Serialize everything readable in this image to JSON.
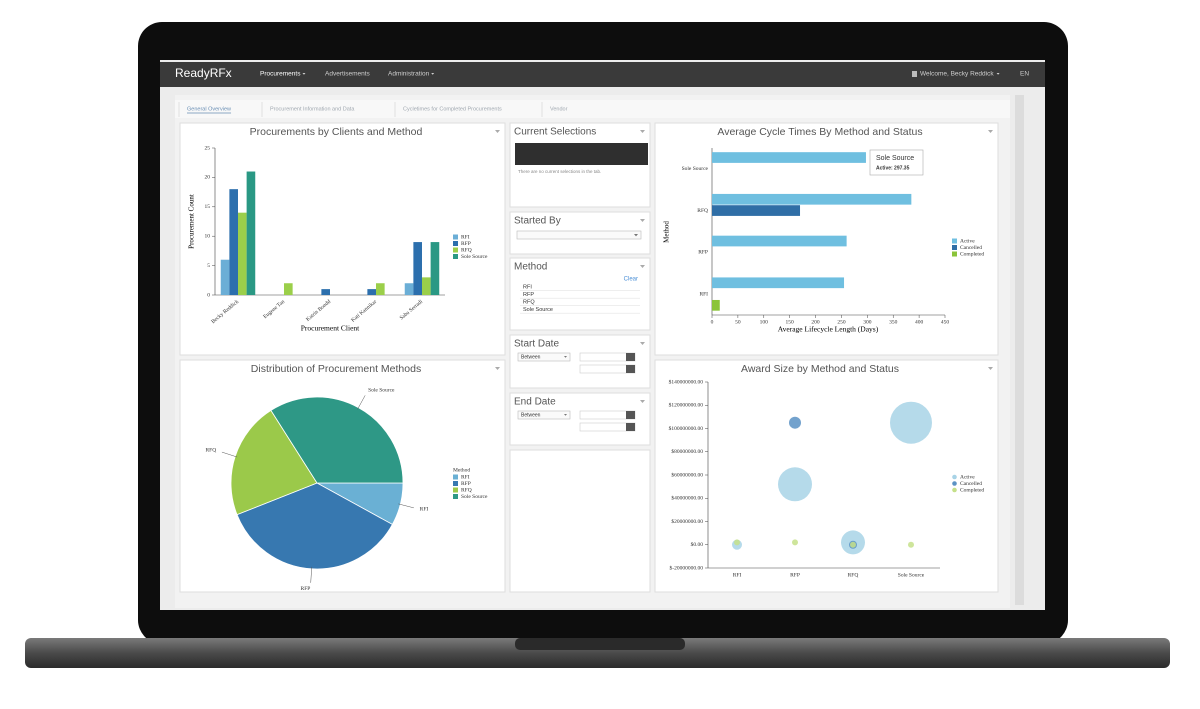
{
  "nav": {
    "brand": "ReadyRFx",
    "menu": [
      "Procurements",
      "Advertisements",
      "Administration"
    ],
    "user": "Welcome, Becky Reddick",
    "language": "EN"
  },
  "tabs": [
    "General Overview",
    "Procurement Information and Data",
    "Cycletimes for Completed Procurements",
    "Vendor"
  ],
  "filters": {
    "current_selections": {
      "title": "Current Selections",
      "message": "There are no current selections in the tab."
    },
    "started_by": {
      "title": "Started By"
    },
    "method": {
      "title": "Method",
      "clear": "Clear",
      "options": [
        "RFI",
        "RFP",
        "RFQ",
        "Sole Source"
      ]
    },
    "start_date": {
      "title": "Start Date",
      "operator": "Between"
    },
    "end_date": {
      "title": "End Date",
      "operator": "Between"
    }
  },
  "chart_data": [
    {
      "type": "bar",
      "title": "Procurements by Clients and Method",
      "x_label": "Procurement Client",
      "y_label": "Procurement Count",
      "categories": [
        "Becky Reddick",
        "Eugene Tan",
        "Katrin Bondd",
        "Kati Kannikar",
        "Saba Serradi"
      ],
      "series": [
        {
          "name": "RFI",
          "color": "#6baed6",
          "values": [
            6,
            0,
            0,
            0,
            2
          ]
        },
        {
          "name": "RFP",
          "color": "#2c6fad",
          "values": [
            18,
            0,
            1,
            1,
            9
          ]
        },
        {
          "name": "RFQ",
          "color": "#9bcf4a",
          "values": [
            14,
            2,
            0,
            2,
            3
          ]
        },
        {
          "name": "Sole Source",
          "color": "#2a9884",
          "values": [
            21,
            0,
            0,
            0,
            9
          ]
        }
      ],
      "ylim": [
        0,
        25
      ],
      "yticks": [
        0,
        5,
        10,
        15,
        20,
        25
      ],
      "legend": "right"
    },
    {
      "type": "hbar",
      "title": "Average Cycle Times By Method and Status",
      "x_label": "Average Lifecycle Length (Days)",
      "y_label": "Method",
      "categories": [
        "Sole Source",
        "RFQ",
        "RFP",
        "RFI"
      ],
      "series": [
        {
          "name": "Active",
          "color": "#6fbfe0",
          "values": [
            297.35,
            385,
            260,
            255
          ]
        },
        {
          "name": "Cancelled",
          "color": "#2f6ea6",
          "values": [
            null,
            170,
            null,
            null
          ]
        },
        {
          "name": "Completed",
          "color": "#8bc43a",
          "values": [
            null,
            null,
            null,
            15
          ]
        }
      ],
      "xlim": [
        0,
        450
      ],
      "xticks": [
        0,
        50,
        100,
        150,
        200,
        250,
        300,
        350,
        400,
        450
      ],
      "tooltip": {
        "title": "Sole Source",
        "text": "Active: 297.35"
      },
      "legend": "right"
    },
    {
      "type": "pie",
      "title": "Distribution of Procurement Methods",
      "legend_title": "Method",
      "categories": [
        "RFI",
        "RFP",
        "RFQ",
        "Sole Source"
      ],
      "values": [
        8,
        36,
        22,
        34
      ],
      "colors": [
        "#6ab0d4",
        "#3778b0",
        "#9bc94a",
        "#2e9886"
      ],
      "legend": "right"
    },
    {
      "type": "bubble",
      "title": "Award Size by Method and Status",
      "categories": [
        "RFI",
        "RFP",
        "RFQ",
        "Sole Source"
      ],
      "series": [
        {
          "name": "Active",
          "color": "#a8d3e6",
          "values": [
            0,
            52000000,
            2000000,
            105000000
          ],
          "sizes": [
            25,
            289,
            144,
            441
          ]
        },
        {
          "name": "Cancelled",
          "color": "#5b92c4",
          "values": [
            null,
            105000000,
            0,
            null
          ],
          "sizes": [
            null,
            36,
            16,
            null
          ]
        },
        {
          "name": "Completed",
          "color": "#c5e08a",
          "values": [
            2000000,
            2000000,
            0,
            0
          ],
          "sizes": [
            9,
            9,
            9,
            9
          ]
        }
      ],
      "ylim": [
        -20000000,
        140000000
      ],
      "yticks": [
        {
          "value": -20000000,
          "label": "$-20000000.00"
        },
        {
          "value": 0,
          "label": "$0.00"
        },
        {
          "value": 20000000,
          "label": "$20000000.00"
        },
        {
          "value": 40000000,
          "label": "$40000000.00"
        },
        {
          "value": 60000000,
          "label": "$60000000.00"
        },
        {
          "value": 80000000,
          "label": "$80000000.00"
        },
        {
          "value": 100000000,
          "label": "$100000000.00"
        },
        {
          "value": 120000000,
          "label": "$120000000.00"
        },
        {
          "value": 140000000,
          "label": "$140000000.00"
        }
      ],
      "legend": "right"
    }
  ]
}
